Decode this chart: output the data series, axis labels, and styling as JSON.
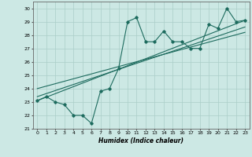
{
  "xlabel": "Humidex (Indice chaleur)",
  "xlim": [
    -0.5,
    23.5
  ],
  "ylim": [
    21,
    30.5
  ],
  "xticks": [
    0,
    1,
    2,
    3,
    4,
    5,
    6,
    7,
    8,
    9,
    10,
    11,
    12,
    13,
    14,
    15,
    16,
    17,
    18,
    19,
    20,
    21,
    22,
    23
  ],
  "yticks": [
    21,
    22,
    23,
    24,
    25,
    26,
    27,
    28,
    29,
    30
  ],
  "bg_color": "#cce8e4",
  "line_color": "#1d6b5e",
  "grid_color": "#aacec8",
  "main_x": [
    0,
    1,
    2,
    3,
    4,
    5,
    6,
    7,
    8,
    9,
    10,
    11,
    12,
    13,
    14,
    15,
    16,
    17,
    18,
    19,
    20,
    21,
    22,
    23
  ],
  "main_y": [
    23.1,
    23.4,
    23.0,
    22.8,
    22.0,
    22.0,
    21.4,
    23.8,
    24.0,
    25.5,
    29.0,
    29.3,
    27.5,
    27.5,
    28.3,
    27.5,
    27.5,
    27.0,
    27.0,
    28.8,
    28.5,
    30.0,
    29.0,
    29.1
  ],
  "trend1_x": [
    0,
    23
  ],
  "trend1_y": [
    23.1,
    29.1
  ],
  "trend2_x": [
    0,
    23
  ],
  "trend2_y": [
    23.4,
    28.6
  ],
  "trend3_x": [
    0,
    23
  ],
  "trend3_y": [
    24.0,
    28.2
  ]
}
